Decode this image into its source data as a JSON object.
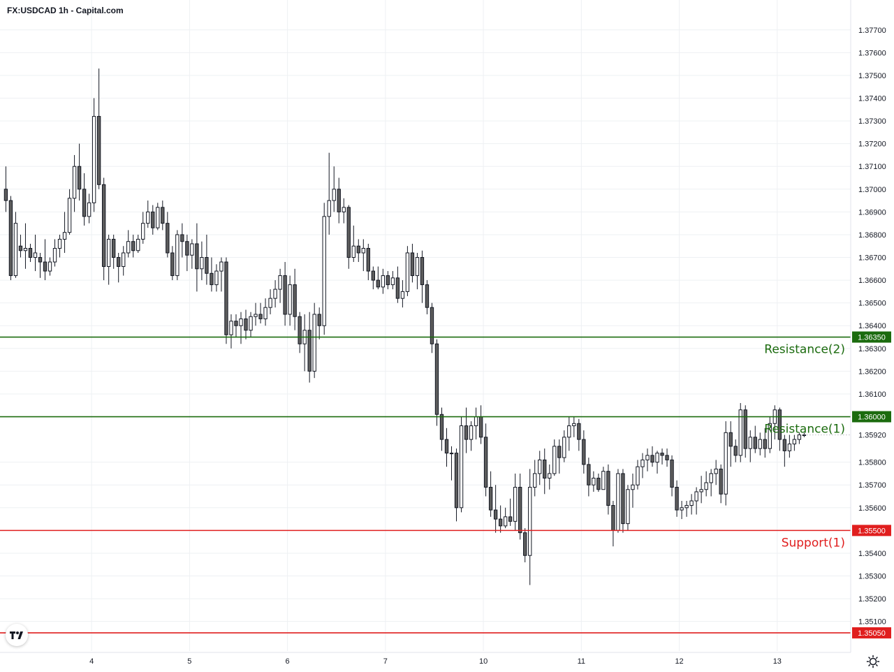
{
  "header": {
    "title": "FX:USDCAD 1h - Capital.com"
  },
  "colors": {
    "bull_body": "#ffffff",
    "bear_body": "#5d5d5d",
    "candle_outline": "#131722",
    "resistance": "#1b6b0e",
    "support": "#e01e1e",
    "grid": "#eef0f3"
  },
  "icons": {
    "logo": "tradingview-logo-icon",
    "settings": "gear-icon"
  },
  "chart_data": {
    "type": "candlestick",
    "symbol": "FX:USDCAD",
    "timeframe": "1h",
    "ylim": [
      1.3497,
      1.3777
    ],
    "y_ticks": [
      "1.35100",
      "1.35200",
      "1.35300",
      "1.35400",
      "1.35600",
      "1.35700",
      "1.35800",
      "1.36100",
      "1.36200",
      "1.36300",
      "1.36400",
      "1.36500",
      "1.36600",
      "1.36700",
      "1.36800",
      "1.36900",
      "1.37000",
      "1.37100",
      "1.37200",
      "1.37300",
      "1.37400",
      "1.37500",
      "1.37600",
      "1.37700"
    ],
    "x_ticks": [
      {
        "label": "4",
        "bar": 17.5
      },
      {
        "label": "5",
        "bar": 37.5
      },
      {
        "label": "6",
        "bar": 57.5
      },
      {
        "label": "7",
        "bar": 77.5
      },
      {
        "label": "10",
        "bar": 97.5
      },
      {
        "label": "11",
        "bar": 117.5
      },
      {
        "label": "12",
        "bar": 137.5
      },
      {
        "label": "13",
        "bar": 157.5
      }
    ],
    "bar_range": [
      -1.2,
      172.5
    ],
    "levels": [
      {
        "name": "Resistance(2)",
        "price": 1.3635,
        "tag": "1.36350",
        "kind": "resistance"
      },
      {
        "name": "Resistance(1)",
        "price": 1.36,
        "tag": "1.36000",
        "kind": "resistance"
      },
      {
        "name": "Support(1)",
        "price": 1.355,
        "tag": "1.35500",
        "kind": "support"
      },
      {
        "name": "",
        "price": 1.3505,
        "tag": "1.35050",
        "kind": "support"
      }
    ],
    "current_price": {
      "price": 1.3592,
      "tag": "1.35920"
    },
    "candles": [
      [
        1.37,
        1.371,
        1.369,
        1.3695
      ],
      [
        1.3695,
        1.3697,
        1.366,
        1.3662
      ],
      [
        1.3662,
        1.369,
        1.3661,
        1.3685
      ],
      [
        1.3675,
        1.368,
        1.367,
        1.3673
      ],
      [
        1.3673,
        1.3685,
        1.3665,
        1.3674
      ],
      [
        1.3674,
        1.3676,
        1.3668,
        1.367
      ],
      [
        1.367,
        1.368,
        1.3664,
        1.3672
      ],
      [
        1.367,
        1.3672,
        1.3661,
        1.3668
      ],
      [
        1.3668,
        1.3678,
        1.366,
        1.3664
      ],
      [
        1.3664,
        1.367,
        1.3662,
        1.3668
      ],
      [
        1.3668,
        1.3678,
        1.3666,
        1.3674
      ],
      [
        1.3674,
        1.368,
        1.367,
        1.3678
      ],
      [
        1.3678,
        1.369,
        1.3672,
        1.3681
      ],
      [
        1.3681,
        1.37,
        1.368,
        1.3696
      ],
      [
        1.3696,
        1.3715,
        1.369,
        1.371
      ],
      [
        1.371,
        1.372,
        1.3695,
        1.37
      ],
      [
        1.37,
        1.3707,
        1.3684,
        1.3688
      ],
      [
        1.3688,
        1.3698,
        1.3685,
        1.3694
      ],
      [
        1.3694,
        1.374,
        1.369,
        1.3732
      ],
      [
        1.3732,
        1.3753,
        1.37,
        1.3702
      ],
      [
        1.3702,
        1.3705,
        1.366,
        1.3666
      ],
      [
        1.3666,
        1.368,
        1.3658,
        1.3678
      ],
      [
        1.3678,
        1.368,
        1.3665,
        1.367
      ],
      [
        1.367,
        1.3672,
        1.3659,
        1.3666
      ],
      [
        1.3666,
        1.3675,
        1.3662,
        1.3672
      ],
      [
        1.3672,
        1.3682,
        1.367,
        1.3677
      ],
      [
        1.3677,
        1.368,
        1.367,
        1.3673
      ],
      [
        1.3673,
        1.368,
        1.3672,
        1.3678
      ],
      [
        1.3678,
        1.369,
        1.3676,
        1.3685
      ],
      [
        1.3685,
        1.3695,
        1.3683,
        1.369
      ],
      [
        1.369,
        1.3693,
        1.368,
        1.3683
      ],
      [
        1.3683,
        1.3694,
        1.3682,
        1.3692
      ],
      [
        1.3692,
        1.3695,
        1.3682,
        1.3685
      ],
      [
        1.3685,
        1.369,
        1.367,
        1.3672
      ],
      [
        1.3672,
        1.3675,
        1.366,
        1.3662
      ],
      [
        1.3662,
        1.3682,
        1.366,
        1.368
      ],
      [
        1.368,
        1.3685,
        1.367,
        1.3677
      ],
      [
        1.3677,
        1.368,
        1.3664,
        1.3671
      ],
      [
        1.3671,
        1.3678,
        1.3665,
        1.3676
      ],
      [
        1.3676,
        1.3685,
        1.3655,
        1.3665
      ],
      [
        1.3665,
        1.3677,
        1.366,
        1.367
      ],
      [
        1.367,
        1.368,
        1.3658,
        1.3663
      ],
      [
        1.3663,
        1.367,
        1.3655,
        1.3658
      ],
      [
        1.3658,
        1.3667,
        1.3655,
        1.3664
      ],
      [
        1.3664,
        1.367,
        1.3655,
        1.3668
      ],
      [
        1.3668,
        1.367,
        1.3632,
        1.3636
      ],
      [
        1.3636,
        1.3645,
        1.363,
        1.3642
      ],
      [
        1.3642,
        1.3645,
        1.3635,
        1.364
      ],
      [
        1.364,
        1.3646,
        1.3632,
        1.3643
      ],
      [
        1.3643,
        1.3647,
        1.3634,
        1.3638
      ],
      [
        1.3638,
        1.3646,
        1.3635,
        1.3644
      ],
      [
        1.3644,
        1.365,
        1.364,
        1.3645
      ],
      [
        1.3645,
        1.365,
        1.3641,
        1.3643
      ],
      [
        1.3643,
        1.3652,
        1.364,
        1.3648
      ],
      [
        1.3648,
        1.3656,
        1.3645,
        1.3652
      ],
      [
        1.3652,
        1.366,
        1.3648,
        1.3656
      ],
      [
        1.3656,
        1.3665,
        1.365,
        1.3662
      ],
      [
        1.3662,
        1.3668,
        1.364,
        1.3645
      ],
      [
        1.3645,
        1.3662,
        1.364,
        1.3658
      ],
      [
        1.3658,
        1.3665,
        1.3638,
        1.3644
      ],
      [
        1.3644,
        1.3646,
        1.3628,
        1.3632
      ],
      [
        1.3632,
        1.3645,
        1.362,
        1.3638
      ],
      [
        1.3638,
        1.3646,
        1.3615,
        1.362
      ],
      [
        1.362,
        1.365,
        1.3617,
        1.3645
      ],
      [
        1.3645,
        1.3648,
        1.3634,
        1.364
      ],
      [
        1.364,
        1.3694,
        1.3636,
        1.3688
      ],
      [
        1.3688,
        1.3716,
        1.368,
        1.3695
      ],
      [
        1.3695,
        1.371,
        1.369,
        1.37
      ],
      [
        1.37,
        1.3705,
        1.3685,
        1.369
      ],
      [
        1.369,
        1.3696,
        1.3685,
        1.3692
      ],
      [
        1.3692,
        1.3693,
        1.3665,
        1.367
      ],
      [
        1.367,
        1.3684,
        1.3668,
        1.3675
      ],
      [
        1.3675,
        1.3678,
        1.3668,
        1.3672
      ],
      [
        1.3672,
        1.3678,
        1.3664,
        1.3674
      ],
      [
        1.3674,
        1.3676,
        1.366,
        1.3664
      ],
      [
        1.3664,
        1.3666,
        1.3656,
        1.366
      ],
      [
        1.366,
        1.3666,
        1.3656,
        1.3657
      ],
      [
        1.3657,
        1.3665,
        1.3654,
        1.3662
      ],
      [
        1.3662,
        1.3664,
        1.3656,
        1.3658
      ],
      [
        1.3658,
        1.3664,
        1.3656,
        1.3661
      ],
      [
        1.3661,
        1.3666,
        1.365,
        1.3652
      ],
      [
        1.3652,
        1.366,
        1.3648,
        1.3655
      ],
      [
        1.3655,
        1.3675,
        1.3653,
        1.3672
      ],
      [
        1.3672,
        1.3676,
        1.3659,
        1.3662
      ],
      [
        1.3662,
        1.3672,
        1.3656,
        1.367
      ],
      [
        1.367,
        1.3673,
        1.365,
        1.3658
      ],
      [
        1.3658,
        1.366,
        1.3645,
        1.3648
      ],
      [
        1.3648,
        1.365,
        1.3628,
        1.3632
      ],
      [
        1.3632,
        1.3634,
        1.3596,
        1.3601
      ],
      [
        1.3601,
        1.3604,
        1.3585,
        1.359
      ],
      [
        1.359,
        1.3595,
        1.3578,
        1.3584
      ],
      [
        1.3584,
        1.3587,
        1.3572,
        1.3584
      ],
      [
        1.3584,
        1.3586,
        1.3554,
        1.356
      ],
      [
        1.356,
        1.36,
        1.3558,
        1.3596
      ],
      [
        1.3596,
        1.3604,
        1.3584,
        1.359
      ],
      [
        1.359,
        1.3598,
        1.3585,
        1.3596
      ],
      [
        1.3596,
        1.3604,
        1.359,
        1.36
      ],
      [
        1.36,
        1.3605,
        1.3588,
        1.3591
      ],
      [
        1.3591,
        1.3597,
        1.3565,
        1.3569
      ],
      [
        1.3569,
        1.3576,
        1.3556,
        1.3559
      ],
      [
        1.3559,
        1.357,
        1.3549,
        1.3555
      ],
      [
        1.3555,
        1.3561,
        1.3549,
        1.3552
      ],
      [
        1.3552,
        1.356,
        1.3551,
        1.3556
      ],
      [
        1.3556,
        1.3564,
        1.3552,
        1.3554
      ],
      [
        1.3554,
        1.3575,
        1.355,
        1.3569
      ],
      [
        1.3569,
        1.3575,
        1.3546,
        1.3549
      ],
      [
        1.3549,
        1.3551,
        1.3536,
        1.3539
      ],
      [
        1.3539,
        1.3577,
        1.3526,
        1.3569
      ],
      [
        1.3569,
        1.3581,
        1.3565,
        1.3575
      ],
      [
        1.3575,
        1.3585,
        1.357,
        1.3581
      ],
      [
        1.3581,
        1.3586,
        1.3566,
        1.3573
      ],
      [
        1.3573,
        1.3579,
        1.3568,
        1.3575
      ],
      [
        1.3575,
        1.359,
        1.3574,
        1.3587
      ],
      [
        1.3587,
        1.359,
        1.3575,
        1.3582
      ],
      [
        1.3582,
        1.3594,
        1.358,
        1.3591
      ],
      [
        1.3591,
        1.36,
        1.3585,
        1.3596
      ],
      [
        1.3596,
        1.36,
        1.3591,
        1.3597
      ],
      [
        1.3597,
        1.3599,
        1.3585,
        1.359
      ],
      [
        1.359,
        1.3594,
        1.3575,
        1.3579
      ],
      [
        1.3579,
        1.3582,
        1.3565,
        1.357
      ],
      [
        1.357,
        1.3576,
        1.3567,
        1.3573
      ],
      [
        1.3573,
        1.3575,
        1.3567,
        1.3568
      ],
      [
        1.3568,
        1.3578,
        1.3568,
        1.3576
      ],
      [
        1.3576,
        1.3579,
        1.3557,
        1.3561
      ],
      [
        1.3561,
        1.3563,
        1.3543,
        1.355
      ],
      [
        1.355,
        1.3577,
        1.3549,
        1.3575
      ],
      [
        1.3575,
        1.3577,
        1.3549,
        1.3553
      ],
      [
        1.3553,
        1.357,
        1.355,
        1.3568
      ],
      [
        1.3568,
        1.3575,
        1.356,
        1.357
      ],
      [
        1.357,
        1.3581,
        1.3568,
        1.3578
      ],
      [
        1.3578,
        1.3584,
        1.3573,
        1.3581
      ],
      [
        1.3581,
        1.3586,
        1.3576,
        1.3583
      ],
      [
        1.3583,
        1.3587,
        1.3578,
        1.358
      ],
      [
        1.358,
        1.3585,
        1.3575,
        1.3584
      ],
      [
        1.3584,
        1.3586,
        1.3579,
        1.3583
      ],
      [
        1.3583,
        1.3586,
        1.3578,
        1.3581
      ],
      [
        1.3581,
        1.3583,
        1.3565,
        1.3569
      ],
      [
        1.3569,
        1.3572,
        1.3556,
        1.3559
      ],
      [
        1.3559,
        1.3563,
        1.3555,
        1.356
      ],
      [
        1.356,
        1.3563,
        1.3556,
        1.3561
      ],
      [
        1.3561,
        1.3566,
        1.3557,
        1.3563
      ],
      [
        1.3563,
        1.3569,
        1.3557,
        1.3567
      ],
      [
        1.3567,
        1.3574,
        1.3562,
        1.3568
      ],
      [
        1.3568,
        1.3576,
        1.3565,
        1.3571
      ],
      [
        1.3571,
        1.3577,
        1.3565,
        1.3575
      ],
      [
        1.3575,
        1.3581,
        1.357,
        1.3577
      ],
      [
        1.3577,
        1.3579,
        1.3562,
        1.3566
      ],
      [
        1.3566,
        1.3598,
        1.3561,
        1.3593
      ],
      [
        1.3593,
        1.3598,
        1.3578,
        1.3587
      ],
      [
        1.3587,
        1.359,
        1.358,
        1.3583
      ],
      [
        1.3583,
        1.3606,
        1.358,
        1.3603
      ],
      [
        1.3603,
        1.3605,
        1.3582,
        1.3586
      ],
      [
        1.3586,
        1.3594,
        1.358,
        1.3591
      ],
      [
        1.3591,
        1.3596,
        1.3584,
        1.3586
      ],
      [
        1.3586,
        1.3593,
        1.3583,
        1.359
      ],
      [
        1.359,
        1.3595,
        1.3582,
        1.3586
      ],
      [
        1.3586,
        1.36,
        1.3584,
        1.3597
      ],
      [
        1.3597,
        1.3605,
        1.359,
        1.3603
      ],
      [
        1.3603,
        1.3604,
        1.3585,
        1.359
      ],
      [
        1.359,
        1.3592,
        1.3578,
        1.3585
      ],
      [
        1.3585,
        1.3592,
        1.3582,
        1.3588
      ],
      [
        1.3588,
        1.3592,
        1.3585,
        1.359
      ],
      [
        1.359,
        1.3593,
        1.3588,
        1.3592
      ],
      [
        1.3592,
        1.3593,
        1.3591,
        1.3592
      ]
    ]
  }
}
